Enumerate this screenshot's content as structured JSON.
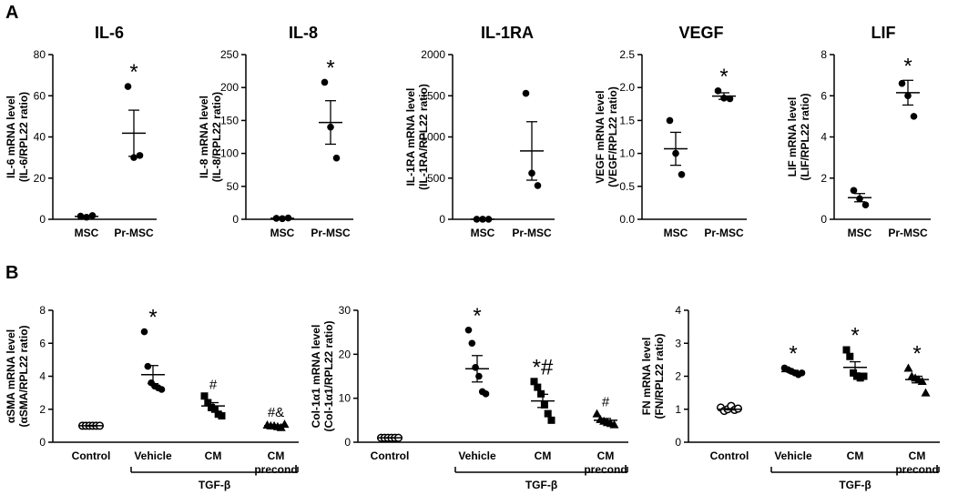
{
  "panel_labels": {
    "a": "A",
    "b": "B"
  },
  "chart_data": [
    {
      "type": "scatter",
      "title": "IL-6",
      "ylabel": [
        "IL-6 mRNA level",
        "(IL-6/RPL22 ratio)"
      ],
      "ylim": [
        0,
        80
      ],
      "yticks": [
        "0",
        "20",
        "40",
        "60",
        "80"
      ],
      "categories": [
        "MSC",
        "Pr-MSC"
      ],
      "groups": [
        {
          "points": [
            1.5,
            1.0,
            1.8
          ],
          "mean": 1.4,
          "sem": 0.3,
          "marker": "filled-circle",
          "annotation": ""
        },
        {
          "points": [
            64.5,
            30.0,
            31.0
          ],
          "mean": 41.8,
          "sem": 11.2,
          "marker": "filled-circle",
          "annotation": "*"
        }
      ]
    },
    {
      "type": "scatter",
      "title": "IL-8",
      "ylabel": [
        "IL-8 mRNA level",
        "(IL-8/RPL22 ratio)"
      ],
      "ylim": [
        0,
        250
      ],
      "yticks": [
        "0",
        "50",
        "100",
        "150",
        "200",
        "250"
      ],
      "categories": [
        "MSC",
        "Pr-MSC"
      ],
      "groups": [
        {
          "points": [
            1.5,
            1.0,
            2.0
          ],
          "mean": 1.5,
          "sem": 0.3,
          "marker": "filled-circle",
          "annotation": ""
        },
        {
          "points": [
            208,
            140,
            93
          ],
          "mean": 147,
          "sem": 33,
          "marker": "filled-circle",
          "annotation": "*"
        }
      ]
    },
    {
      "type": "scatter",
      "title": "IL-1RA",
      "ylabel": [
        "IL-1RA mRNA level",
        "(IL-1RA/RPL22 ratio)"
      ],
      "ylim": [
        0,
        2000
      ],
      "yticks": [
        "0",
        "500",
        "1000",
        "1500",
        "2000"
      ],
      "categories": [
        "MSC",
        "Pr-MSC"
      ],
      "groups": [
        {
          "points": [
            1,
            1,
            1
          ],
          "mean": 1,
          "sem": 0.1,
          "marker": "filled-circle",
          "annotation": ""
        },
        {
          "points": [
            1530,
            560,
            410
          ],
          "mean": 830,
          "sem": 355,
          "marker": "filled-circle",
          "annotation": ""
        }
      ]
    },
    {
      "type": "scatter",
      "title": "VEGF",
      "ylabel": [
        "VEGF mRNA level",
        "(VEGF/RPL22 ratio)"
      ],
      "ylim": [
        0,
        2.5
      ],
      "yticks": [
        "0.0",
        "0.5",
        "1.0",
        "1.5",
        "2.0",
        "2.5"
      ],
      "categories": [
        "MSC",
        "Pr-MSC"
      ],
      "groups": [
        {
          "points": [
            1.5,
            1.0,
            0.68
          ],
          "mean": 1.07,
          "sem": 0.25,
          "marker": "filled-circle",
          "annotation": ""
        },
        {
          "points": [
            1.95,
            1.84,
            1.83
          ],
          "mean": 1.87,
          "sem": 0.05,
          "marker": "filled-circle",
          "annotation": "*"
        }
      ]
    },
    {
      "type": "scatter",
      "title": "LIF",
      "ylabel": [
        "LIF mRNA level",
        "(LIF/RPL22 ratio)"
      ],
      "ylim": [
        0,
        8
      ],
      "yticks": [
        "0",
        "2",
        "4",
        "6",
        "8"
      ],
      "categories": [
        "MSC",
        "Pr-MSC"
      ],
      "groups": [
        {
          "points": [
            1.4,
            1.0,
            0.7
          ],
          "mean": 1.05,
          "sem": 0.2,
          "marker": "filled-circle",
          "annotation": ""
        },
        {
          "points": [
            6.6,
            6.0,
            5.0
          ],
          "mean": 6.15,
          "sem": 0.6,
          "marker": "filled-circle",
          "annotation": "*"
        }
      ]
    },
    {
      "type": "scatter",
      "ylabel": [
        "αSMA mRNA level",
        "(αSMA/RPL22 ratio)"
      ],
      "ylim": [
        0,
        8
      ],
      "yticks": [
        "0",
        "2",
        "4",
        "6",
        "8"
      ],
      "categories": [
        "Control",
        "Vehicle",
        "CM",
        "CM\nprecond"
      ],
      "bracket_label": "TGF-β",
      "groups": [
        {
          "points": [
            1.0,
            1.0,
            1.0,
            1.0,
            1.0,
            1.0
          ],
          "mean": 1.0,
          "sem": 0.02,
          "marker": "open-circle",
          "annotation": ""
        },
        {
          "points": [
            6.7,
            4.6,
            3.6,
            3.4,
            3.3,
            3.2
          ],
          "mean": 4.1,
          "sem": 0.55,
          "marker": "filled-circle",
          "annotation": "*"
        },
        {
          "points": [
            2.8,
            2.4,
            2.1,
            2.0,
            1.7,
            1.6
          ],
          "mean": 2.2,
          "sem": 0.2,
          "marker": "filled-square",
          "annotation": "#"
        },
        {
          "points": [
            1.05,
            1.0,
            1.0,
            0.95,
            0.9,
            1.1
          ],
          "mean": 1.0,
          "sem": 0.05,
          "marker": "filled-triangle",
          "annotation": "#&"
        }
      ]
    },
    {
      "type": "scatter",
      "ylabel": [
        "Col-1α1 mRNA level",
        "(Col-1α1/RPL22 ratio)"
      ],
      "ylim": [
        0,
        30
      ],
      "yticks": [
        "0",
        "10",
        "20",
        "30"
      ],
      "categories": [
        "Control",
        "Vehicle",
        "CM",
        "CM\nprecond"
      ],
      "bracket_label": "TGF-β",
      "groups": [
        {
          "points": [
            1.0,
            1.0,
            1.0,
            1.0,
            1.0,
            1.0
          ],
          "mean": 1.0,
          "sem": 0.02,
          "marker": "open-circle",
          "annotation": ""
        },
        {
          "points": [
            25.5,
            22.5,
            17.0,
            15.0,
            11.5,
            11.0
          ],
          "mean": 16.7,
          "sem": 3.0,
          "marker": "filled-circle",
          "annotation": "*"
        },
        {
          "points": [
            13.8,
            12.5,
            11.0,
            8.5,
            6.5,
            5.0
          ],
          "mean": 9.4,
          "sem": 1.5,
          "marker": "filled-square",
          "annotation": "*#"
        },
        {
          "points": [
            6.5,
            5.2,
            4.8,
            4.5,
            4.3,
            4.0
          ],
          "mean": 5.0,
          "sem": 0.4,
          "marker": "filled-triangle",
          "annotation": "#"
        }
      ]
    },
    {
      "type": "scatter",
      "ylabel": [
        "FN mRNA level",
        "(FN/RPL22 ratio)"
      ],
      "ylim": [
        0,
        4
      ],
      "yticks": [
        "0",
        "1",
        "2",
        "3",
        "4"
      ],
      "categories": [
        "Control",
        "Vehicle",
        "CM",
        "CM\nprecond"
      ],
      "bracket_label": "TGF-β",
      "groups": [
        {
          "points": [
            1.05,
            0.95,
            1.0,
            1.1,
            0.98,
            1.02
          ],
          "mean": 1.0,
          "sem": 0.02,
          "marker": "open-circle",
          "annotation": ""
        },
        {
          "points": [
            2.25,
            2.2,
            2.15,
            2.1,
            2.05,
            2.1
          ],
          "mean": 2.14,
          "sem": 0.04,
          "marker": "filled-circle",
          "annotation": "*"
        },
        {
          "points": [
            2.8,
            2.6,
            2.1,
            2.0,
            1.95,
            2.0
          ],
          "mean": 2.27,
          "sem": 0.17,
          "marker": "filled-square",
          "annotation": "*"
        },
        {
          "points": [
            2.25,
            2.0,
            1.95,
            1.9,
            1.85,
            1.5
          ],
          "mean": 1.9,
          "sem": 0.1,
          "marker": "filled-triangle",
          "annotation": "*"
        }
      ]
    }
  ]
}
